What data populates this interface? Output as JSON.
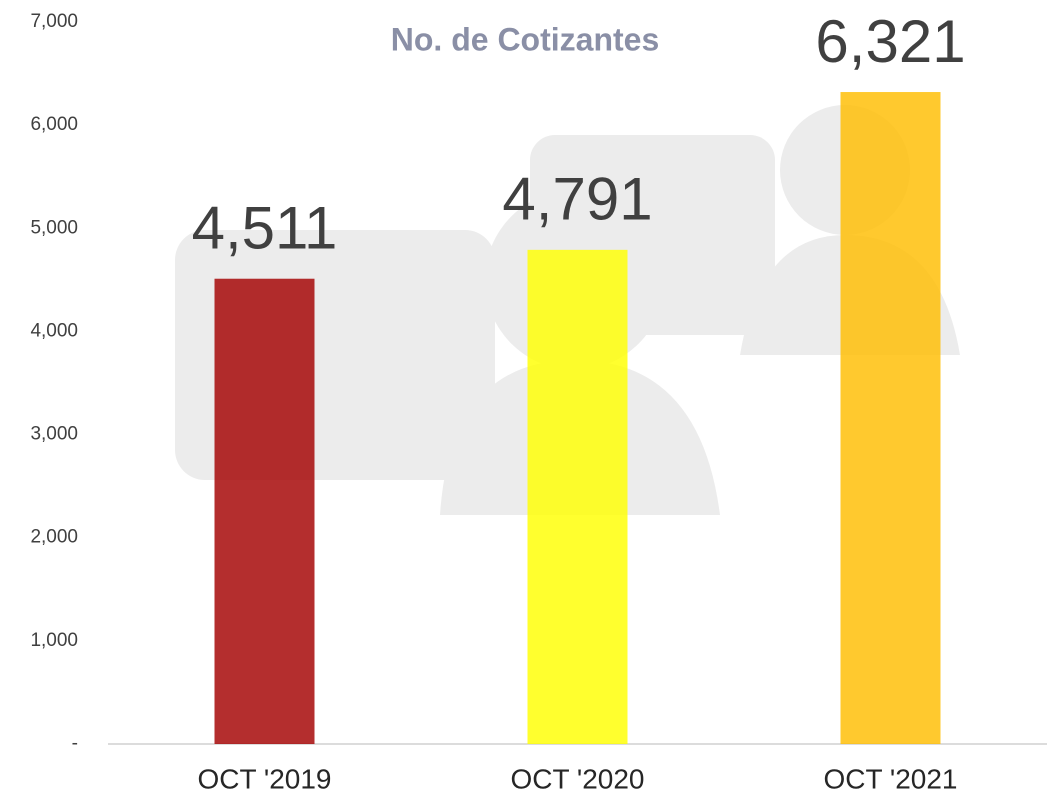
{
  "chart_data": {
    "type": "bar",
    "title": "No. de Cotizantes",
    "categories": [
      "OCT '2019",
      "OCT '2020",
      "OCT '2021"
    ],
    "series": [
      {
        "values": [
          4511,
          4791,
          6321
        ],
        "value_labels": [
          "4,511",
          "4,791",
          "6,321"
        ],
        "colors": [
          "#a30000",
          "#ffff00",
          "#ffbd00"
        ]
      }
    ],
    "ylim": [
      0,
      7000
    ],
    "yticks": [
      {
        "value": 0,
        "label": "-"
      },
      {
        "value": 1000,
        "label": "1,000"
      },
      {
        "value": 2000,
        "label": "2,000"
      },
      {
        "value": 3000,
        "label": "3,000"
      },
      {
        "value": 4000,
        "label": "4,000"
      },
      {
        "value": 5000,
        "label": "5,000"
      },
      {
        "value": 6000,
        "label": "6,000"
      },
      {
        "value": 7000,
        "label": "7,000"
      }
    ],
    "grid": false
  }
}
